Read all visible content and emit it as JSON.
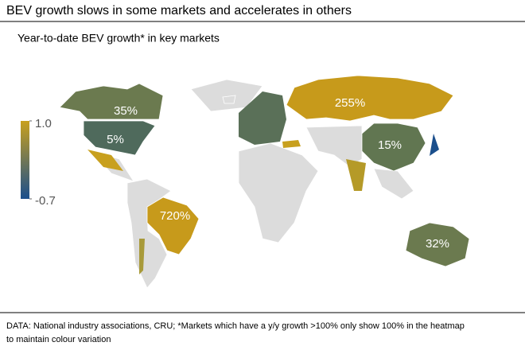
{
  "chart_data": {
    "type": "choropleth",
    "title": "BEV growth slows in some markets and accelerates in others",
    "subtitle": "Year-to-date BEV growth* in key markets",
    "values": [
      35,
      5,
      255,
      15,
      720,
      32
    ],
    "value_labels": [
      "35%",
      "5%",
      "255%",
      "15%",
      "720%",
      "32%"
    ],
    "colors": [
      "#6b7a4f",
      "#4f6a5c",
      "#c79a1b",
      "#617651",
      "#c79a1b",
      "#6b7a4f"
    ],
    "colorbar": {
      "lim": [
        -0.7,
        1
      ],
      "ticks": [
        {
          "value": 1,
          "label": "1.0"
        },
        -0.7
      ],
      "colors": [
        "#1b4f8c",
        "#c8a01e"
      ]
    },
    "source": [
      "DATA: National industry associations, CRU; *Markets which have a y/y growth >100% only show 100% in the heatmap",
      "to maintain colour variation"
    ]
  }
}
